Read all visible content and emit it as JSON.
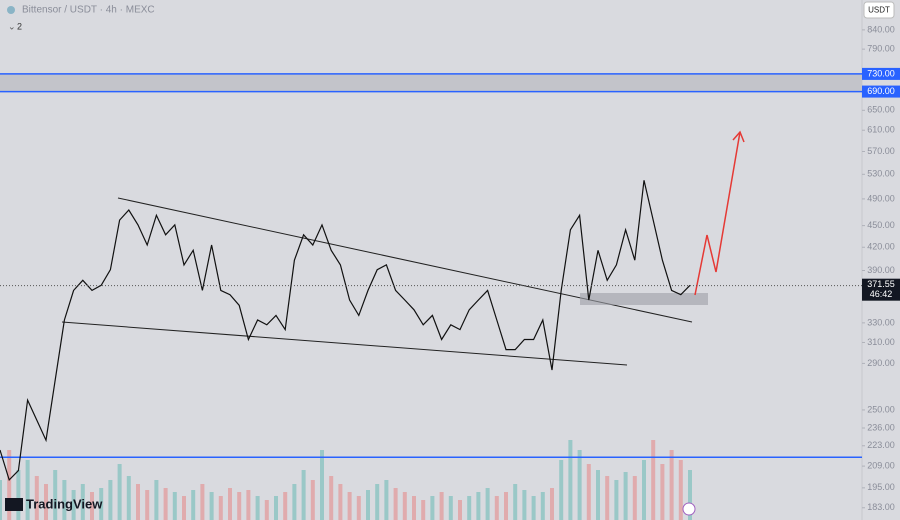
{
  "chart_data": {
    "type": "line",
    "header": "Bittensor / USDT · 4h · MEXC",
    "indicator_count": "2",
    "currency_button": "USDT",
    "brand": "TradingView",
    "log_scale": true,
    "ylim": [
      176,
      924
    ],
    "yticks": [
      {
        "value": 840,
        "label": "840.00"
      },
      {
        "value": 790,
        "label": "790.00"
      },
      {
        "value": 650,
        "label": "650.00"
      },
      {
        "value": 610,
        "label": "610.00"
      },
      {
        "value": 570,
        "label": "570.00"
      },
      {
        "value": 530,
        "label": "530.00"
      },
      {
        "value": 490,
        "label": "490.00"
      },
      {
        "value": 450,
        "label": "450.00"
      },
      {
        "value": 420,
        "label": "420.00"
      },
      {
        "value": 390,
        "label": "390.00"
      },
      {
        "value": 330,
        "label": "330.00"
      },
      {
        "value": 310,
        "label": "310.00"
      },
      {
        "value": 290,
        "label": "290.00"
      },
      {
        "value": 250,
        "label": "250.00"
      },
      {
        "value": 236,
        "label": "236.00"
      },
      {
        "value": 223,
        "label": "223.00"
      },
      {
        "value": 209,
        "label": "209.00"
      },
      {
        "value": 195,
        "label": "195.00"
      },
      {
        "value": 183,
        "label": "183.00"
      }
    ],
    "levels": [
      {
        "value": 730,
        "label": "730.00"
      },
      {
        "value": 690,
        "label": "690.00"
      }
    ],
    "support": 215,
    "last_price": 371.55,
    "countdown": "46:42",
    "color": "#111111",
    "level_color": "#2962ff",
    "up_color": "#26a69a",
    "down_color": "#ef5350",
    "values": [
      220,
      200,
      206,
      258,
      242,
      227,
      275,
      333,
      366,
      378,
      366,
      372,
      391,
      458,
      473,
      451,
      423,
      465,
      437,
      451,
      397,
      416,
      366,
      423,
      366,
      361,
      349,
      313,
      333,
      328,
      338,
      323,
      403,
      437,
      423,
      451,
      416,
      397,
      355,
      338,
      366,
      391,
      397,
      366,
      355,
      344,
      328,
      338,
      313,
      328,
      323,
      344,
      355,
      366,
      333,
      303,
      303,
      313,
      313,
      333,
      284,
      366,
      444,
      465,
      355,
      416,
      378,
      397,
      444,
      403,
      520,
      458,
      403,
      366,
      361,
      372
    ],
    "volume": [
      20,
      35,
      25,
      30,
      22,
      18,
      25,
      20,
      15,
      18,
      14,
      16,
      20,
      28,
      22,
      18,
      15,
      20,
      16,
      14,
      12,
      15,
      18,
      14,
      12,
      16,
      14,
      15,
      12,
      10,
      12,
      14,
      18,
      25,
      20,
      35,
      22,
      18,
      14,
      12,
      15,
      18,
      20,
      16,
      14,
      12,
      10,
      12,
      14,
      12,
      10,
      12,
      14,
      16,
      12,
      14,
      18,
      15,
      12,
      14,
      16,
      30,
      40,
      35,
      28,
      25,
      22,
      20,
      24,
      22,
      30,
      40,
      28,
      35,
      30,
      25
    ]
  }
}
